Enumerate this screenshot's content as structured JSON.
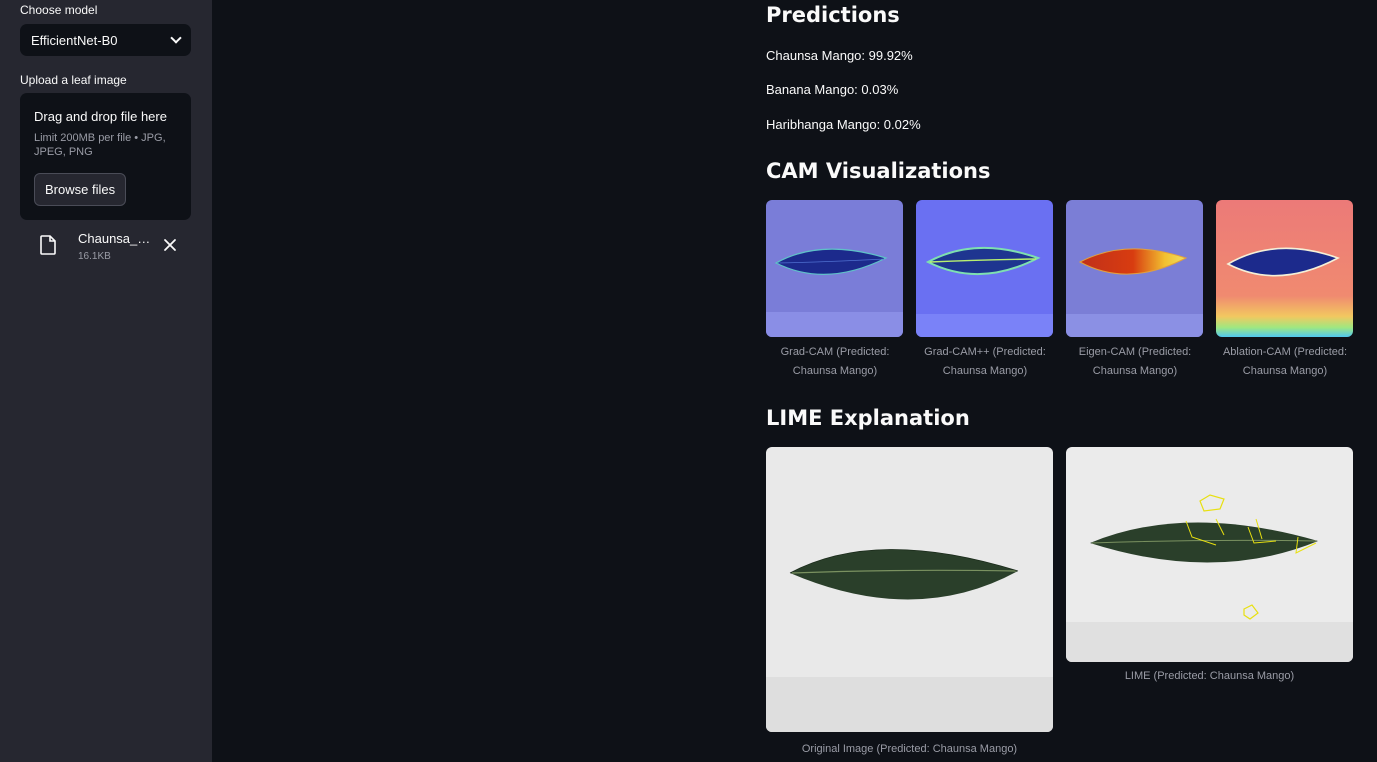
{
  "sidebar": {
    "model_label": "Choose model",
    "model_value": "EfficientNet-B0",
    "upload_label": "Upload a leaf image",
    "dropzone_title": "Drag and drop file here",
    "dropzone_limit": "Limit 200MB per file • JPG, JPEG, PNG",
    "browse_label": "Browse files",
    "file": {
      "name": "Chaunsa_Mango.jpg",
      "size": "16.1KB"
    }
  },
  "main": {
    "predictions_title": "Predictions",
    "predictions": [
      "Chaunsa Mango: 99.92%",
      "Banana Mango: 0.03%",
      "Haribhanga Mango: 0.02%"
    ],
    "cam_title": "CAM Visualizations",
    "cam_captions": [
      "Grad-CAM (Predicted: Chaunsa Mango)",
      "Grad-CAM++ (Predicted: Chaunsa Mango)",
      "Eigen-CAM (Predicted: Chaunsa Mango)",
      "Ablation-CAM (Predicted: Chaunsa Mango)"
    ],
    "lime_title": "LIME Explanation",
    "lime_captions": [
      "Original Image (Predicted: Chaunsa Mango)",
      "LIME (Predicted: Chaunsa Mango)"
    ]
  },
  "icons": [
    "chevron-down-icon",
    "file-icon",
    "close-icon"
  ],
  "colors": {
    "background": "#0e1117",
    "sidebar": "#262730",
    "text": "#fafafa",
    "muted": "#9a9ca6"
  }
}
